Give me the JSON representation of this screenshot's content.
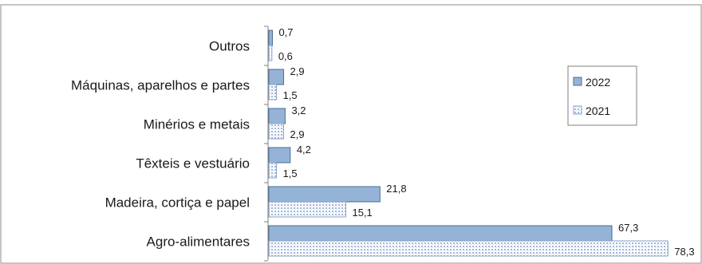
{
  "chart_data": {
    "type": "bar",
    "orientation": "horizontal",
    "categories": [
      "Outros",
      "Máquinas, aparelhos e partes",
      "Minérios e metais",
      "Têxteis e vestuário",
      "Madeira, cortiça e papel",
      "Agro-alimentares"
    ],
    "series": [
      {
        "name": "2022",
        "values": [
          0.7,
          2.9,
          3.2,
          4.2,
          21.8,
          67.3
        ],
        "labels": [
          "0,7",
          "2,9",
          "3,2",
          "4,2",
          "21,8",
          "67,3"
        ],
        "fill": "solid-blue"
      },
      {
        "name": "2021",
        "values": [
          0.6,
          1.5,
          2.9,
          1.5,
          15.1,
          78.3
        ],
        "labels": [
          "0,6",
          "1,5",
          "2,9",
          "1,5",
          "15,1",
          "78,3"
        ],
        "fill": "dotted-pattern"
      }
    ],
    "title": "",
    "xlabel": "",
    "ylabel": "",
    "xlim": [
      0,
      80
    ],
    "grid": false,
    "legend_position": "right",
    "colors": {
      "bar_2022_fill": "#95b3d7",
      "bar_2022_stroke": "#4a6d94",
      "bar_2021_fill": "#ffffff",
      "bar_2021_dot": "#9fb5d6",
      "bar_2021_stroke": "#8aa2c8",
      "axis": "#808080",
      "border": "#8c8c8c"
    }
  }
}
